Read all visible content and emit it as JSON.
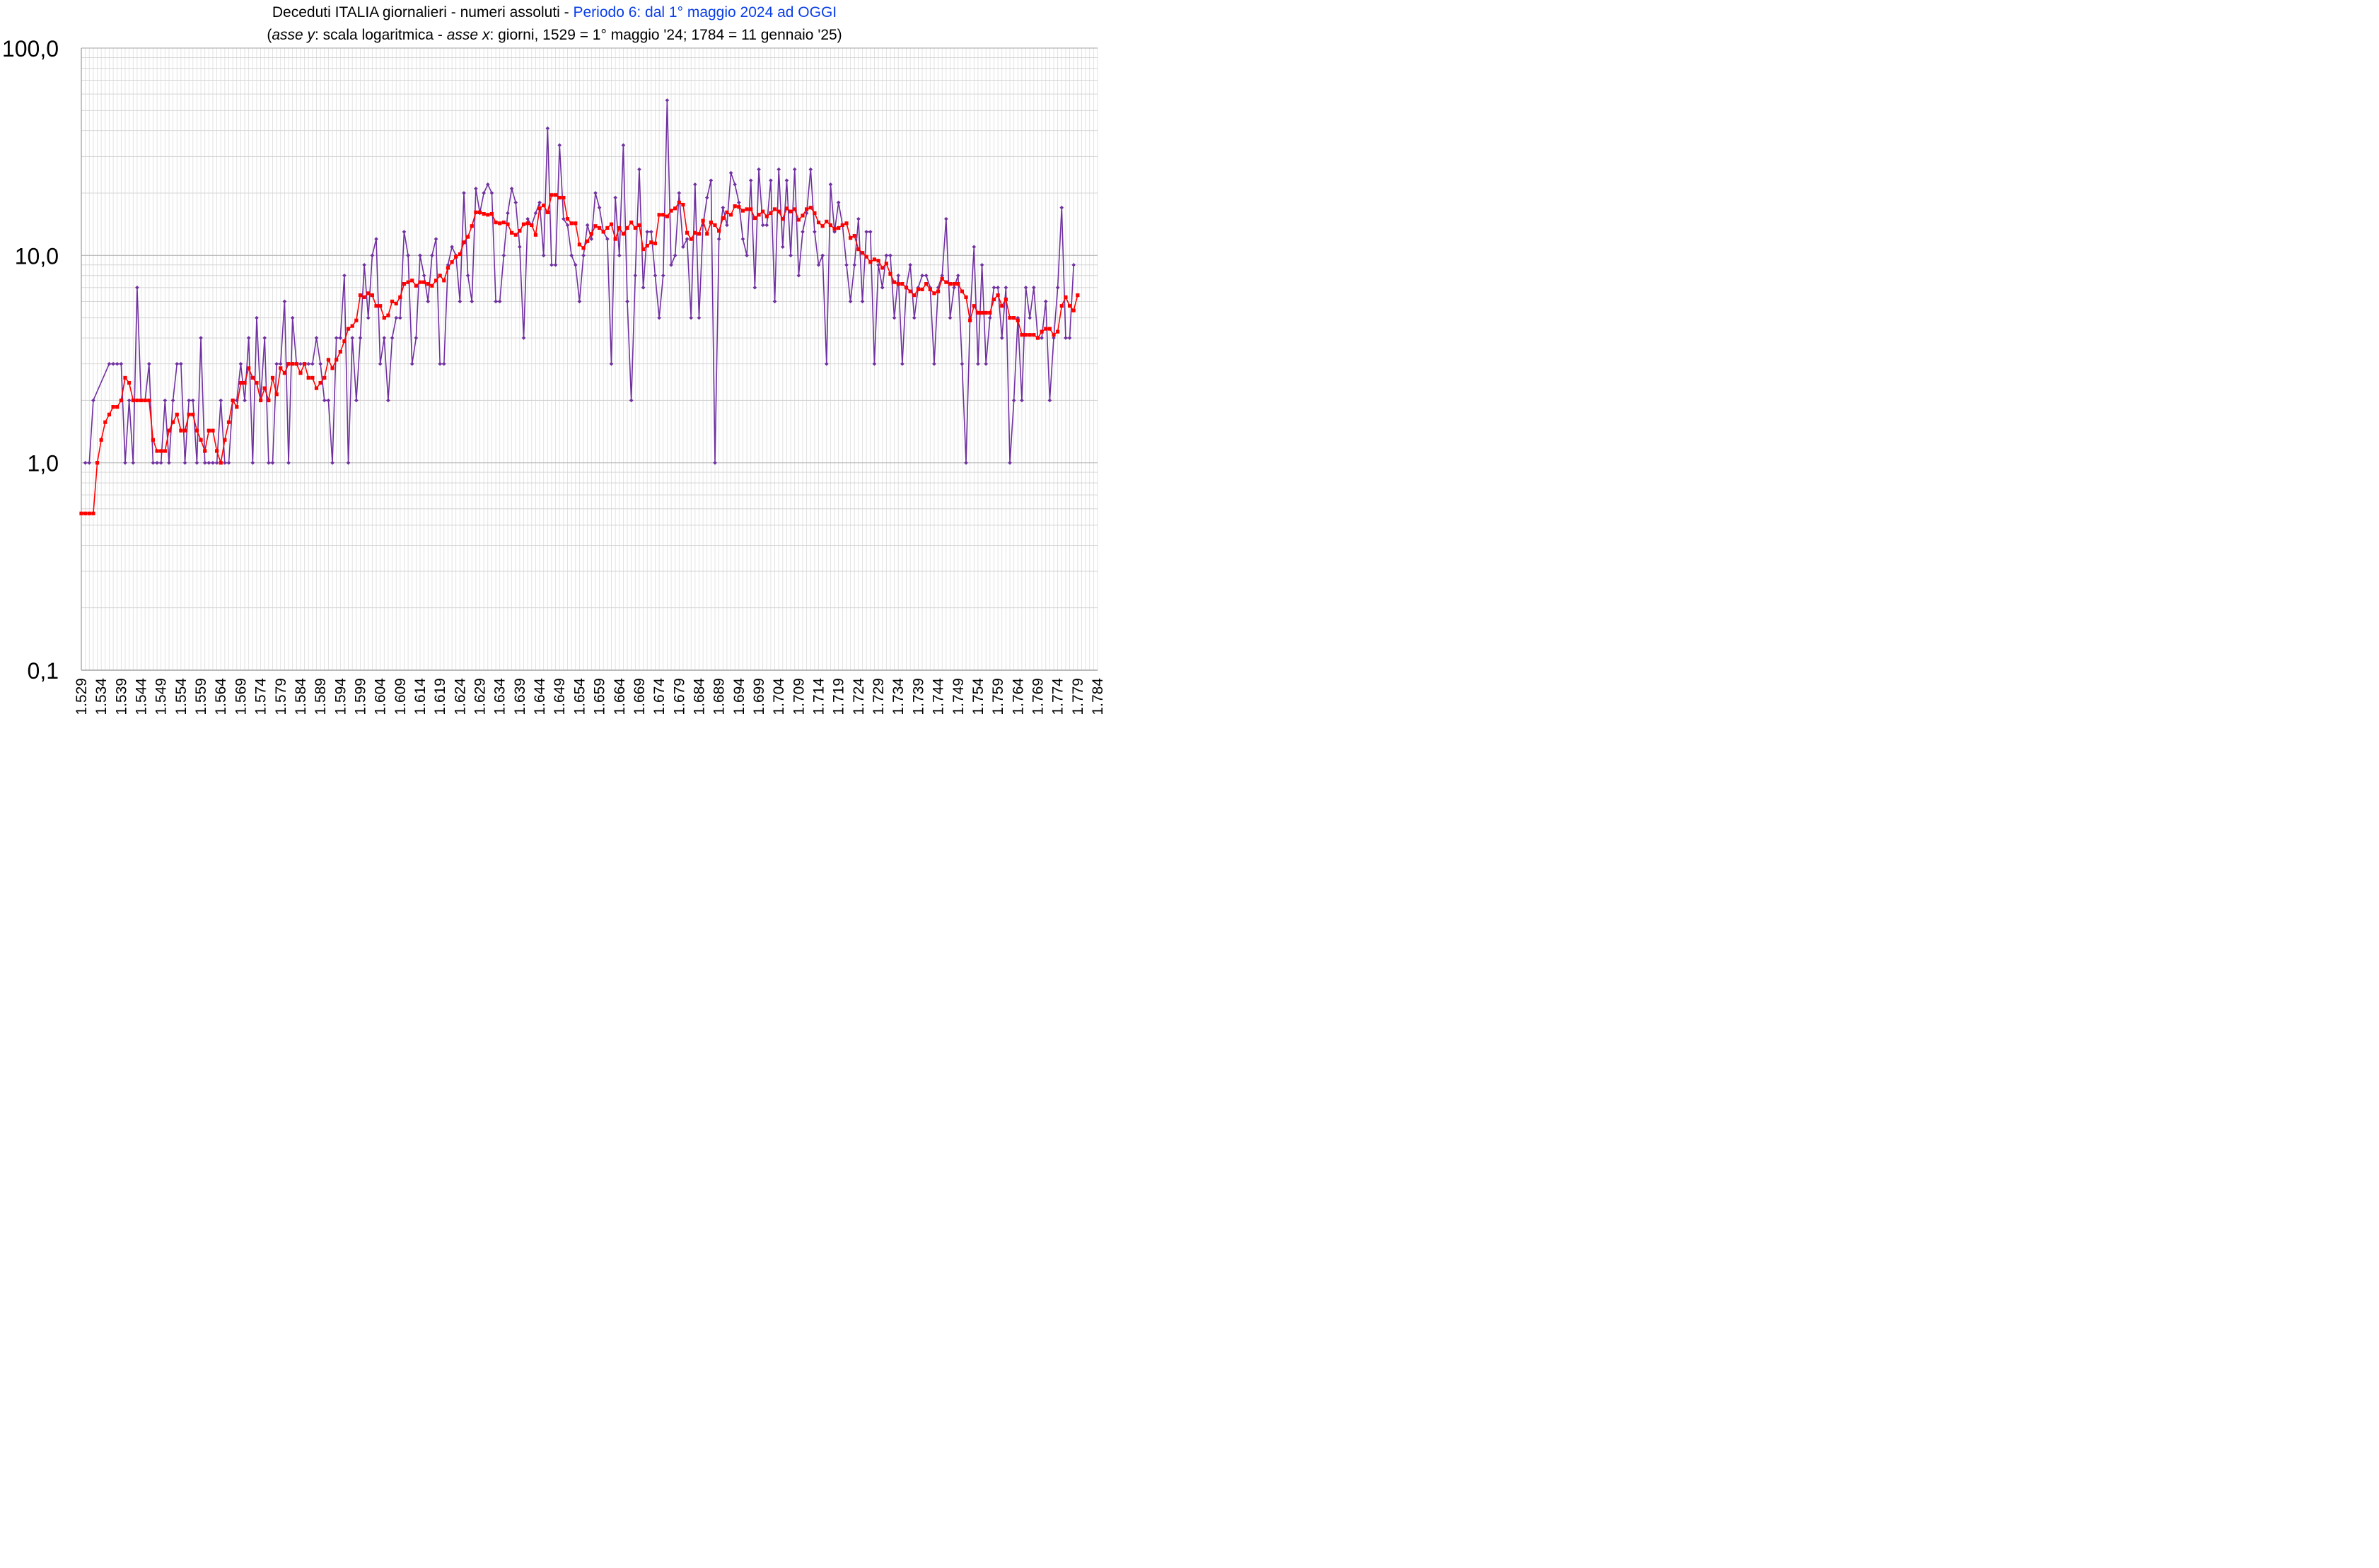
{
  "title": {
    "main": "Deceduti ITALIA giornalieri - numeri assoluti - ",
    "highlight": "Periodo 6: dal 1° maggio 2024 ad OGGI",
    "highlight_color": "#0a3ee6",
    "subtitle_open": "(",
    "subtitle_y_term": "asse y",
    "subtitle_mid": ": scala logaritmica - ",
    "subtitle_x_term": "asse x",
    "subtitle_rest": ":  giorni, 1529 = 1° maggio '24; 1784 = 11 gennaio '25)"
  },
  "chart_data": {
    "type": "line",
    "y_scale": "log",
    "ylim": [
      0.1,
      100
    ],
    "xlim": [
      1529,
      1784
    ],
    "x_tick_step": 5,
    "y_tick_labels": [
      "0,1",
      "1,0",
      "10,0",
      "100,0"
    ],
    "y_tick_values": [
      0.1,
      1,
      10,
      100
    ],
    "x_tick_labels": [
      "1.529",
      "1.534",
      "1.539",
      "1.544",
      "1.549",
      "1.554",
      "1.559",
      "1.564",
      "1.569",
      "1.574",
      "1.579",
      "1.584",
      "1.589",
      "1.594",
      "1.599",
      "1.604",
      "1.609",
      "1.614",
      "1.619",
      "1.624",
      "1.629",
      "1.634",
      "1.639",
      "1.644",
      "1.649",
      "1.654",
      "1.659",
      "1.664",
      "1.669",
      "1.674",
      "1.679",
      "1.684",
      "1.689",
      "1.694",
      "1.699",
      "1.704",
      "1.709",
      "1.714",
      "1.719",
      "1.724",
      "1.729",
      "1.734",
      "1.739",
      "1.744",
      "1.749",
      "1.754",
      "1.759",
      "1.764",
      "1.769",
      "1.774",
      "1.779",
      "1.784"
    ],
    "grid": true,
    "legend": "none",
    "series": [
      {
        "color": "#7030a0",
        "marker": "diamond",
        "x_start": 1529,
        "values": [
          0,
          1,
          1,
          2,
          0,
          0,
          0,
          3,
          3,
          3,
          3,
          1,
          2,
          1,
          7,
          2,
          2,
          3,
          1,
          1,
          1,
          2,
          1,
          2,
          3,
          3,
          1,
          2,
          2,
          1,
          4,
          1,
          1,
          1,
          1,
          2,
          1,
          1,
          2,
          2,
          3,
          2,
          4,
          1,
          5,
          2,
          4,
          1,
          1,
          3,
          3,
          6,
          1,
          5,
          3,
          3,
          3,
          3,
          3,
          4,
          3,
          2,
          2,
          1,
          4,
          4,
          8,
          1,
          4,
          2,
          4,
          9,
          5,
          10,
          12,
          3,
          4,
          2,
          4,
          5,
          5,
          13,
          10,
          3,
          4,
          10,
          8,
          6,
          10,
          12,
          3,
          3,
          9,
          11,
          10,
          6,
          20,
          8,
          6,
          21,
          16,
          20,
          22,
          20,
          6,
          6,
          10,
          16,
          21,
          18,
          11,
          4,
          15,
          14,
          16,
          18,
          10,
          41,
          9,
          9,
          34,
          15,
          14,
          10,
          9,
          6,
          10,
          14,
          12,
          20,
          17,
          13,
          12,
          3,
          19,
          10,
          34,
          6,
          2,
          8,
          26,
          7,
          13,
          13,
          8,
          5,
          8,
          56,
          9,
          10,
          20,
          11,
          12,
          5,
          22,
          5,
          14,
          19,
          23,
          1,
          12,
          17,
          14,
          25,
          22,
          18,
          12,
          10,
          23,
          7,
          26,
          14,
          14,
          23,
          6,
          26,
          11,
          23,
          10,
          26,
          8,
          13,
          16,
          26,
          13,
          9,
          10,
          3,
          22,
          13,
          18,
          14,
          9,
          6,
          9,
          15,
          6,
          13,
          13,
          3,
          9,
          7,
          10,
          10,
          5,
          8,
          3,
          7,
          9,
          5,
          7,
          8,
          8,
          7,
          3,
          7,
          8,
          15,
          5,
          7,
          8,
          3,
          1,
          5,
          11,
          3,
          9,
          3,
          5,
          7,
          7,
          4,
          7,
          1,
          2,
          5,
          2,
          7,
          5,
          7,
          4,
          4,
          6,
          2,
          4,
          7,
          17,
          4,
          4,
          9
        ]
      },
      {
        "color": "#ff0000",
        "marker": "square",
        "x_start": 1529,
        "values": [
          0.57,
          0.57,
          0.57,
          0.57,
          1.0,
          1.29,
          1.57,
          1.71,
          1.86,
          1.86,
          2.0,
          2.57,
          2.43,
          2.0,
          2.0,
          2.0,
          2.0,
          2.0,
          1.29,
          1.14,
          1.14,
          1.14,
          1.43,
          1.57,
          1.71,
          1.43,
          1.43,
          1.71,
          1.71,
          1.43,
          1.29,
          1.14,
          1.43,
          1.43,
          1.14,
          1.0,
          1.29,
          1.57,
          2.0,
          1.86,
          2.43,
          2.43,
          2.86,
          2.57,
          2.43,
          2.0,
          2.29,
          2.0,
          2.57,
          2.14,
          2.86,
          2.71,
          3.0,
          3.0,
          3.0,
          2.71,
          3.0,
          2.57,
          2.57,
          2.29,
          2.43,
          2.57,
          3.14,
          2.86,
          3.14,
          3.43,
          3.86,
          4.43,
          4.57,
          4.86,
          6.43,
          6.29,
          6.57,
          6.43,
          5.71,
          5.71,
          5.0,
          5.14,
          6.0,
          5.86,
          6.29,
          7.29,
          7.43,
          7.57,
          7.14,
          7.43,
          7.43,
          7.29,
          7.14,
          7.57,
          8.0,
          7.57,
          8.71,
          9.29,
          9.86,
          10.14,
          11.57,
          12.29,
          13.86,
          16.14,
          16.14,
          15.86,
          15.71,
          15.86,
          14.43,
          14.29,
          14.43,
          14.14,
          12.86,
          12.57,
          13.14,
          14.14,
          14.29,
          14.0,
          12.57,
          16.86,
          17.43,
          16.14,
          19.57,
          19.57,
          19.0,
          19.0,
          15.0,
          14.29,
          14.29,
          11.29,
          10.86,
          11.71,
          12.71,
          13.86,
          13.57,
          13.0,
          13.57,
          14.14,
          12.0,
          13.57,
          12.71,
          13.57,
          14.43,
          13.57,
          14.0,
          10.71,
          11.14,
          11.57,
          11.43,
          15.71,
          15.71,
          15.43,
          16.43,
          16.86,
          18.0,
          17.57,
          12.86,
          12.0,
          12.86,
          12.71,
          14.71,
          12.71,
          14.43,
          14.0,
          13.14,
          15.14,
          16.14,
          15.71,
          17.29,
          17.14,
          16.43,
          16.71,
          16.71,
          15.14,
          15.71,
          16.29,
          15.43,
          16.0,
          16.71,
          16.29,
          15.0,
          16.86,
          16.29,
          16.71,
          14.86,
          15.57,
          16.71,
          17.0,
          16.0,
          14.43,
          13.86,
          14.57,
          14.0,
          13.43,
          13.57,
          14.0,
          14.29,
          12.14,
          12.43,
          10.71,
          10.29,
          9.86,
          9.29,
          9.57,
          9.43,
          8.71,
          9.14,
          8.14,
          7.43,
          7.29,
          7.29,
          7.0,
          6.71,
          6.43,
          6.86,
          6.86,
          7.29,
          6.86,
          6.57,
          6.71,
          7.71,
          7.43,
          7.29,
          7.29,
          7.29,
          6.71,
          6.29,
          4.86,
          5.71,
          5.29,
          5.29,
          5.29,
          5.29,
          6.14,
          6.43,
          5.71,
          6.14,
          5.0,
          5.0,
          4.86,
          4.14,
          4.14,
          4.14,
          4.14,
          4.0,
          4.29,
          4.43,
          4.43,
          4.14,
          4.29,
          5.71,
          6.29,
          5.71,
          5.43,
          6.43
        ]
      }
    ]
  }
}
